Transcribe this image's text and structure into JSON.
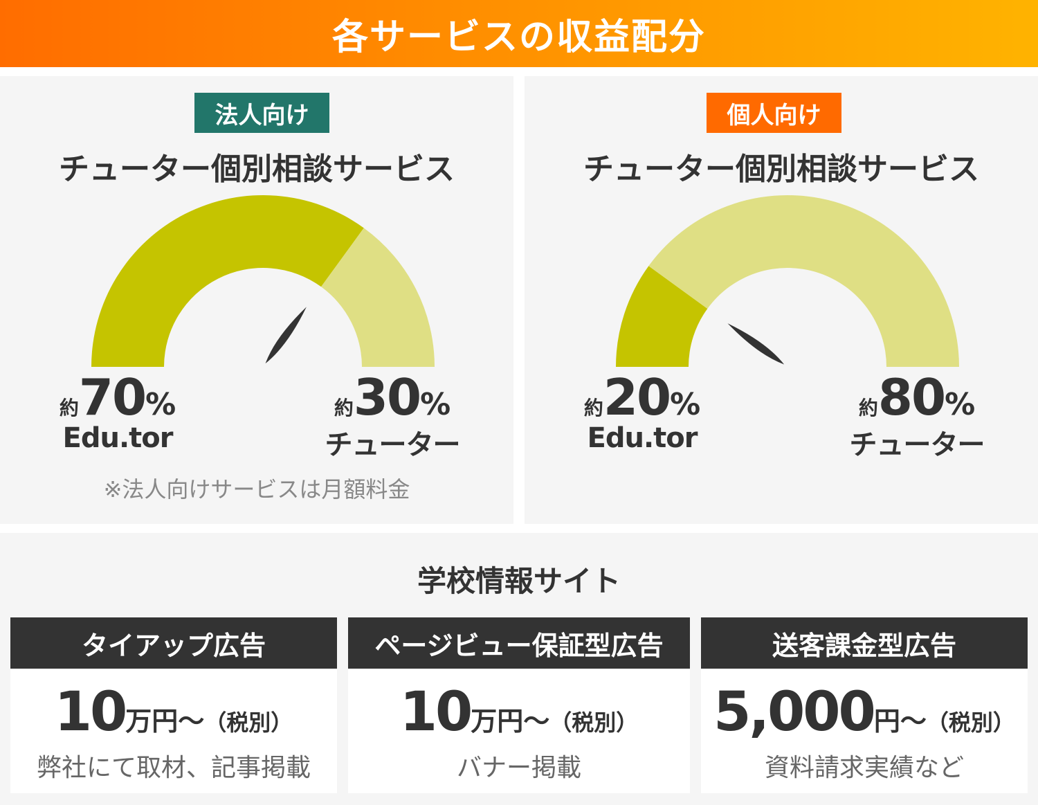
{
  "header": {
    "title": "各サービスの収益配分"
  },
  "colors": {
    "header_start": "#ff6d00",
    "header_end": "#ffb300",
    "corporate_badge": "#22766a",
    "individual_badge": "#ff6a00",
    "gauge_dark": "#c5c400",
    "gauge_light": "#dfdf84",
    "needle": "#333333",
    "ad_header": "#333333"
  },
  "panels": [
    {
      "badge": "法人向け",
      "title": "チューター個別相談サービス",
      "gauge": {
        "edutor_share": 70,
        "tutor_share": 30
      },
      "left": {
        "approx": "約",
        "number": "70",
        "percent": "%",
        "label": "Edu.tor"
      },
      "right": {
        "approx": "約",
        "number": "30",
        "percent": "%",
        "label": "チューター"
      },
      "note": "※法人向けサービスは月額料金"
    },
    {
      "badge": "個人向け",
      "title": "チューター個別相談サービス",
      "gauge": {
        "edutor_share": 20,
        "tutor_share": 80
      },
      "left": {
        "approx": "約",
        "number": "20",
        "percent": "%",
        "label": "Edu.tor"
      },
      "right": {
        "approx": "約",
        "number": "80",
        "percent": "%",
        "label": "チューター"
      }
    }
  ],
  "school": {
    "title": "学校情報サイト",
    "ads": [
      {
        "label": "タイアップ広告",
        "price": "10",
        "unit": "万円〜",
        "tax": "（税別）",
        "description": "弊社にて取材、記事掲載"
      },
      {
        "label": "ページビュー保証型広告",
        "price": "10",
        "unit": "万円〜",
        "tax": "（税別）",
        "description": "バナー掲載"
      },
      {
        "label": "送客課金型広告",
        "price": "5,000",
        "unit": "円〜",
        "tax": "（税別）",
        "description": "資料請求実績など"
      }
    ]
  }
}
